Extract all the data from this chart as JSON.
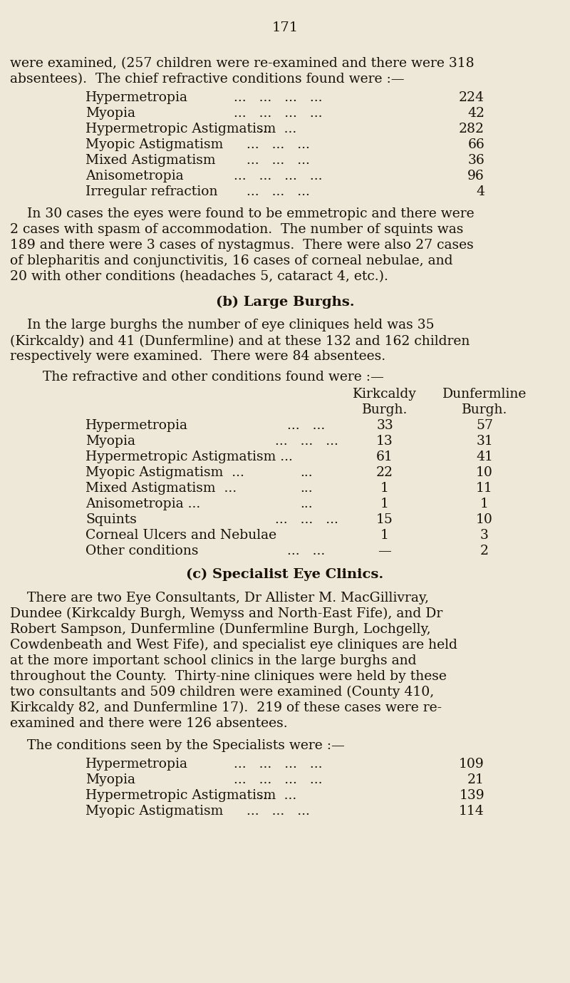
{
  "page_number": "171",
  "bg_color": "#ede8d8",
  "text_color": "#1a1008",
  "font_size_body": 13.5,
  "font_size_page_num": 14,
  "font_size_section_header": 14,
  "line1": "were examined, (257 children were re-examined and there were 318",
  "line2": "absentees).  The chief refractive conditions found were :—",
  "para1_lines": [
    "    In 30 cases the eyes were found to be emmetropic and there were",
    "2 cases with spasm of accommodation.  The number of squints was",
    "189 and there were 3 cases of nystagmus.  There were also 27 cases",
    "of blepharitis and conjunctivitis, 16 cases of corneal nebulae, and",
    "20 with other conditions (headaches 5, cataract 4, etc.)."
  ],
  "section_b_header": "(b) Large Burghs.",
  "para2_lines": [
    "    In the large burghs the number of eye cliniques held was 35",
    "(Kirkcaldy) and 41 (Dunfermline) and at these 132 and 162 children",
    "respectively were examined.  There were 84 absentees."
  ],
  "table_b_intro": "The refractive and other conditions found were :—",
  "section_c_header": "(c) Specialist Eye Clinics.",
  "para3_lines": [
    "    There are two Eye Consultants, Dr Allister M. MacGillivray,",
    "Dundee (Kirkcaldy Burgh, Wemyss and North-East Fife), and Dr",
    "Robert Sampson, Dunfermline (Dunfermline Burgh, Lochgelly,",
    "Cowdenbeath and West Fife), and specialist eye cliniques are held",
    "at the more important school clinics in the large burghs and",
    "throughout the County.  Thirty-nine cliniques were held by these",
    "two consultants and 509 children were examined (County 410,",
    "Kirkcaldy 82, and Dunfermline 17).  219 of these cases were re-",
    "examined and there were 126 absentees."
  ],
  "para4_intro": "    The conditions seen by the Specialists were :—"
}
